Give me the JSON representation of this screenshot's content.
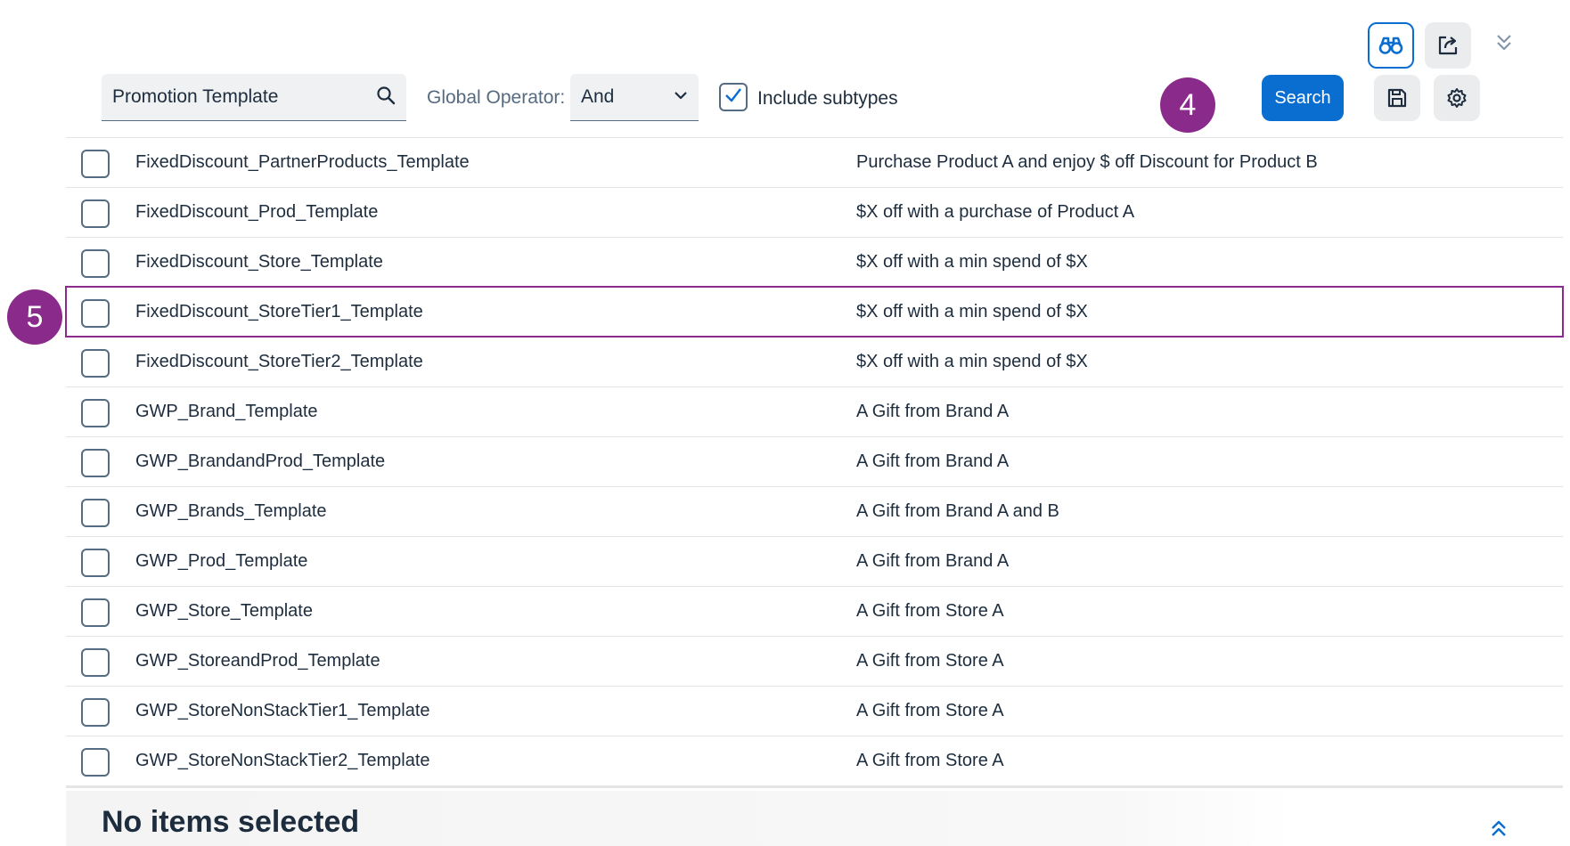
{
  "toolbar": {
    "search_button_label": "Search"
  },
  "filter": {
    "search_value": "Promotion Template",
    "operator_label": "Global Operator:",
    "operator_value": "And",
    "include_subtypes_label": "Include subtypes",
    "include_subtypes_checked": true
  },
  "annotations": {
    "badge_4": "4",
    "badge_5": "5"
  },
  "table": {
    "rows": [
      {
        "name": "FixedDiscount_PartnerProducts_Template",
        "description": "Purchase Product A and enjoy $ off Discount for Product B"
      },
      {
        "name": "FixedDiscount_Prod_Template",
        "description": "$X off with a purchase of Product A"
      },
      {
        "name": "FixedDiscount_Store_Template",
        "description": "$X off with a min spend of $X"
      },
      {
        "name": "FixedDiscount_StoreTier1_Template",
        "description": "$X off with a min spend of $X"
      },
      {
        "name": "FixedDiscount_StoreTier2_Template",
        "description": "$X off with a min spend of $X"
      },
      {
        "name": "GWP_Brand_Template",
        "description": "A Gift from Brand A"
      },
      {
        "name": "GWP_BrandandProd_Template",
        "description": "A Gift from Brand A"
      },
      {
        "name": "GWP_Brands_Template",
        "description": "A Gift from Brand A and B"
      },
      {
        "name": "GWP_Prod_Template",
        "description": "A Gift from Brand A"
      },
      {
        "name": "GWP_Store_Template",
        "description": "A Gift from Store A"
      },
      {
        "name": "GWP_StoreandProd_Template",
        "description": "A Gift from Store A"
      },
      {
        "name": "GWP_StoreNonStackTier1_Template",
        "description": "A Gift from Store A"
      },
      {
        "name": "GWP_StoreNonStackTier2_Template",
        "description": "A Gift from Store A"
      }
    ]
  },
  "footer": {
    "title": "No items selected"
  },
  "colors": {
    "accent": "#0a6ed1",
    "highlight": "#8a2a8a"
  }
}
